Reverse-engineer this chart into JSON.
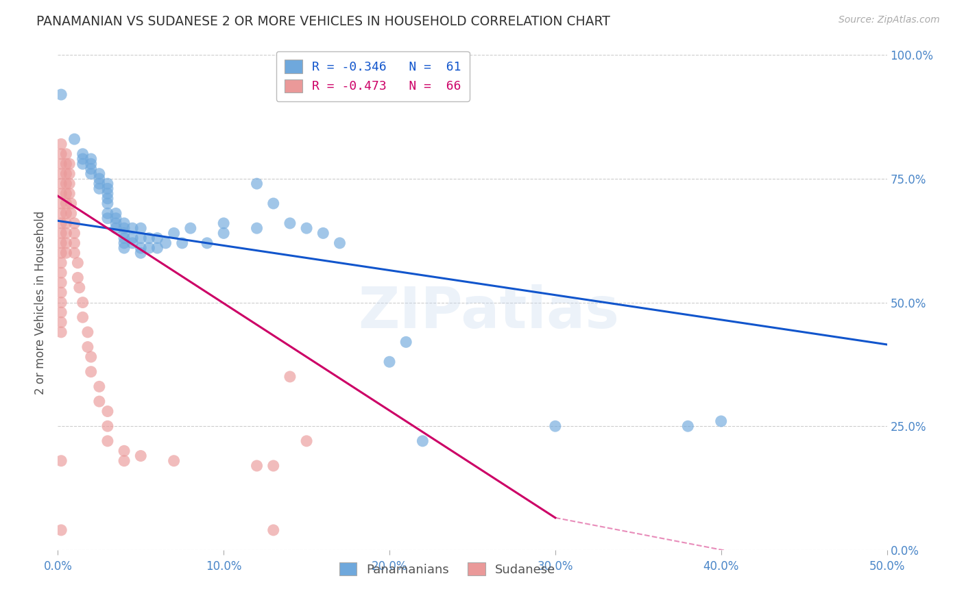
{
  "title": "PANAMANIAN VS SUDANESE 2 OR MORE VEHICLES IN HOUSEHOLD CORRELATION CHART",
  "source": "Source: ZipAtlas.com",
  "ylabel": "2 or more Vehicles in Household",
  "xlim": [
    0.0,
    0.5
  ],
  "ylim": [
    0.0,
    1.0
  ],
  "xticks": [
    0.0,
    0.1,
    0.2,
    0.3,
    0.4,
    0.5
  ],
  "xticklabels": [
    "0.0%",
    "10.0%",
    "20.0%",
    "30.0%",
    "40.0%",
    "50.0%"
  ],
  "yticks": [
    0.0,
    0.25,
    0.5,
    0.75,
    1.0
  ],
  "yticklabels": [
    "0.0%",
    "25.0%",
    "50.0%",
    "75.0%",
    "100.0%"
  ],
  "blue_color": "#6fa8dc",
  "pink_color": "#ea9999",
  "blue_line_color": "#1155cc",
  "pink_line_color": "#cc0066",
  "legend_blue_label": "R = -0.346   N =  61",
  "legend_pink_label": "R = -0.473   N =  66",
  "panamanian_label": "Panamanians",
  "sudanese_label": "Sudanese",
  "watermark": "ZIPatlas",
  "title_color": "#333333",
  "axis_label_color": "#555555",
  "tick_color": "#4a86c8",
  "grid_color": "#cccccc",
  "right_tick_color": "#4a86c8",
  "blue_scatter": [
    [
      0.002,
      0.92
    ],
    [
      0.01,
      0.83
    ],
    [
      0.015,
      0.8
    ],
    [
      0.015,
      0.79
    ],
    [
      0.015,
      0.78
    ],
    [
      0.02,
      0.79
    ],
    [
      0.02,
      0.78
    ],
    [
      0.02,
      0.77
    ],
    [
      0.02,
      0.76
    ],
    [
      0.025,
      0.76
    ],
    [
      0.025,
      0.75
    ],
    [
      0.025,
      0.74
    ],
    [
      0.025,
      0.73
    ],
    [
      0.03,
      0.74
    ],
    [
      0.03,
      0.73
    ],
    [
      0.03,
      0.72
    ],
    [
      0.03,
      0.71
    ],
    [
      0.03,
      0.7
    ],
    [
      0.03,
      0.68
    ],
    [
      0.03,
      0.67
    ],
    [
      0.035,
      0.68
    ],
    [
      0.035,
      0.67
    ],
    [
      0.035,
      0.66
    ],
    [
      0.035,
      0.65
    ],
    [
      0.04,
      0.66
    ],
    [
      0.04,
      0.65
    ],
    [
      0.04,
      0.64
    ],
    [
      0.04,
      0.63
    ],
    [
      0.04,
      0.62
    ],
    [
      0.04,
      0.61
    ],
    [
      0.045,
      0.65
    ],
    [
      0.045,
      0.63
    ],
    [
      0.045,
      0.62
    ],
    [
      0.05,
      0.65
    ],
    [
      0.05,
      0.63
    ],
    [
      0.05,
      0.61
    ],
    [
      0.05,
      0.6
    ],
    [
      0.055,
      0.63
    ],
    [
      0.055,
      0.61
    ],
    [
      0.06,
      0.63
    ],
    [
      0.06,
      0.61
    ],
    [
      0.065,
      0.62
    ],
    [
      0.07,
      0.64
    ],
    [
      0.075,
      0.62
    ],
    [
      0.08,
      0.65
    ],
    [
      0.09,
      0.62
    ],
    [
      0.1,
      0.66
    ],
    [
      0.1,
      0.64
    ],
    [
      0.12,
      0.74
    ],
    [
      0.12,
      0.65
    ],
    [
      0.13,
      0.7
    ],
    [
      0.14,
      0.66
    ],
    [
      0.15,
      0.65
    ],
    [
      0.16,
      0.64
    ],
    [
      0.17,
      0.62
    ],
    [
      0.2,
      0.38
    ],
    [
      0.21,
      0.42
    ],
    [
      0.22,
      0.22
    ],
    [
      0.3,
      0.25
    ],
    [
      0.38,
      0.25
    ],
    [
      0.4,
      0.26
    ]
  ],
  "sudanese_scatter": [
    [
      0.002,
      0.82
    ],
    [
      0.002,
      0.8
    ],
    [
      0.002,
      0.78
    ],
    [
      0.002,
      0.76
    ],
    [
      0.002,
      0.74
    ],
    [
      0.002,
      0.72
    ],
    [
      0.002,
      0.7
    ],
    [
      0.002,
      0.68
    ],
    [
      0.002,
      0.66
    ],
    [
      0.002,
      0.64
    ],
    [
      0.002,
      0.62
    ],
    [
      0.002,
      0.6
    ],
    [
      0.002,
      0.58
    ],
    [
      0.002,
      0.56
    ],
    [
      0.002,
      0.54
    ],
    [
      0.002,
      0.52
    ],
    [
      0.002,
      0.5
    ],
    [
      0.002,
      0.48
    ],
    [
      0.002,
      0.46
    ],
    [
      0.002,
      0.44
    ],
    [
      0.005,
      0.8
    ],
    [
      0.005,
      0.78
    ],
    [
      0.005,
      0.76
    ],
    [
      0.005,
      0.74
    ],
    [
      0.005,
      0.72
    ],
    [
      0.005,
      0.7
    ],
    [
      0.005,
      0.68
    ],
    [
      0.005,
      0.66
    ],
    [
      0.005,
      0.64
    ],
    [
      0.005,
      0.62
    ],
    [
      0.005,
      0.6
    ],
    [
      0.007,
      0.78
    ],
    [
      0.007,
      0.76
    ],
    [
      0.007,
      0.74
    ],
    [
      0.007,
      0.72
    ],
    [
      0.008,
      0.7
    ],
    [
      0.008,
      0.68
    ],
    [
      0.01,
      0.66
    ],
    [
      0.01,
      0.64
    ],
    [
      0.01,
      0.62
    ],
    [
      0.01,
      0.6
    ],
    [
      0.012,
      0.58
    ],
    [
      0.012,
      0.55
    ],
    [
      0.013,
      0.53
    ],
    [
      0.015,
      0.5
    ],
    [
      0.015,
      0.47
    ],
    [
      0.018,
      0.44
    ],
    [
      0.018,
      0.41
    ],
    [
      0.02,
      0.39
    ],
    [
      0.02,
      0.36
    ],
    [
      0.025,
      0.33
    ],
    [
      0.025,
      0.3
    ],
    [
      0.03,
      0.28
    ],
    [
      0.03,
      0.25
    ],
    [
      0.03,
      0.22
    ],
    [
      0.04,
      0.2
    ],
    [
      0.04,
      0.18
    ],
    [
      0.05,
      0.19
    ],
    [
      0.07,
      0.18
    ],
    [
      0.002,
      0.18
    ],
    [
      0.14,
      0.35
    ],
    [
      0.15,
      0.22
    ],
    [
      0.002,
      0.04
    ],
    [
      0.13,
      0.04
    ],
    [
      0.12,
      0.17
    ],
    [
      0.13,
      0.17
    ]
  ],
  "blue_trendline": [
    [
      0.0,
      0.665
    ],
    [
      0.5,
      0.415
    ]
  ],
  "pink_trendline": [
    [
      0.0,
      0.715
    ],
    [
      0.3,
      0.065
    ]
  ],
  "pink_trendline_dashed": [
    [
      0.3,
      0.065
    ],
    [
      0.47,
      -0.045
    ]
  ]
}
